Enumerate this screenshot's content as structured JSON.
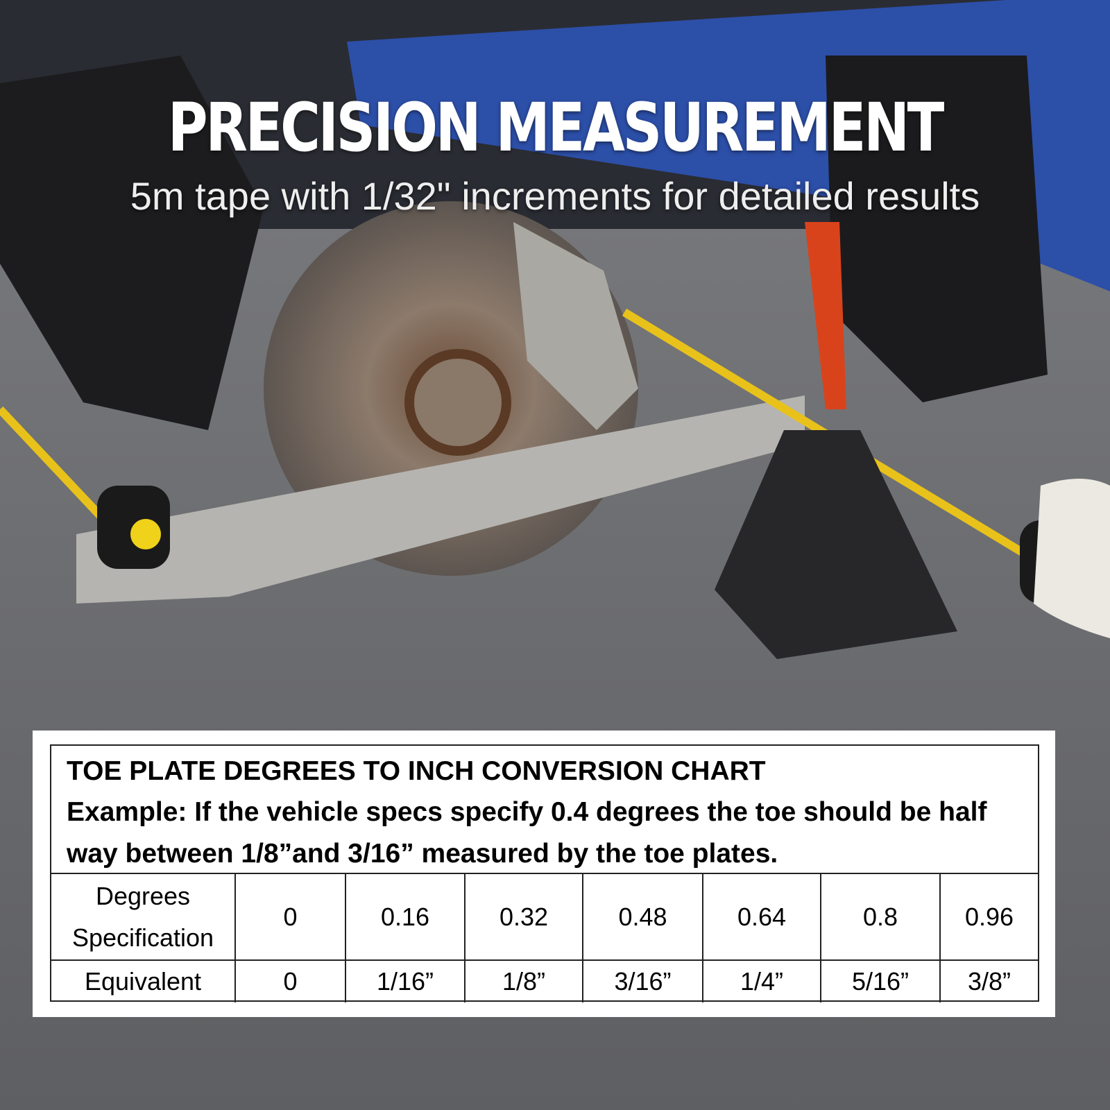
{
  "header": {
    "title": "PRECISION MEASUREMENT",
    "subtitle": "5m tape with 1/32\" increments for detailed results"
  },
  "table": {
    "title": "TOE PLATE DEGREES TO INCH CONVERSION CHART",
    "note": "Example: If the vehicle specs specify 0.4 degrees the toe should be half way between 1/8”and 3/16” measured by the toe plates.",
    "rows": [
      [
        "Degrees Specification",
        "0",
        "0.16",
        "0.32",
        "0.48",
        "0.64",
        "0.8",
        "0.96"
      ],
      [
        "Equivalent",
        "0",
        "1/16”",
        "1/8”",
        "3/16”",
        "1/4”",
        "5/16”",
        "3/8”"
      ]
    ]
  }
}
